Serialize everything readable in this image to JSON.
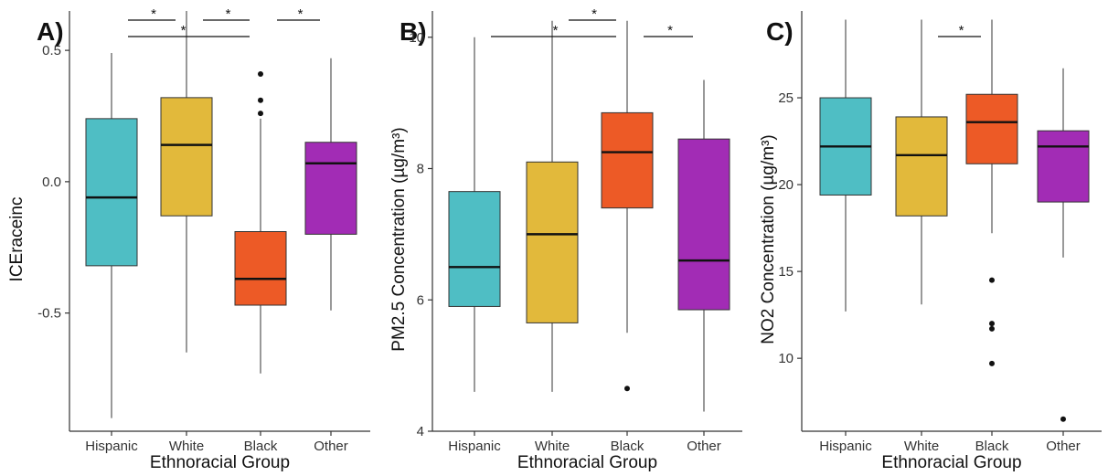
{
  "colors": {
    "Hispanic": "#4FBEC4",
    "White": "#E2B93B",
    "Black": "#ED5A26",
    "Other": "#A22CB5"
  },
  "chart_data": [
    {
      "type": "boxplot",
      "panel": "A)",
      "xlabel": "Ethnoracial Group",
      "ylabel": "ICEraceinc",
      "categories": [
        "Hispanic",
        "White",
        "Black",
        "Other"
      ],
      "ylim": [
        -0.95,
        0.65
      ],
      "yticks": [
        0.5,
        0.0,
        -0.5
      ],
      "ytick_labels": [
        "0.5",
        "0.0",
        "-0.5"
      ],
      "grid": false,
      "boxes": [
        {
          "group": "Hispanic",
          "whisker_low": -0.9,
          "q1": -0.32,
          "median": -0.06,
          "q3": 0.24,
          "whisker_high": 0.49,
          "outliers": []
        },
        {
          "group": "White",
          "whisker_low": -0.65,
          "q1": -0.13,
          "median": 0.14,
          "q3": 0.32,
          "whisker_high": 0.65,
          "outliers": []
        },
        {
          "group": "Black",
          "whisker_low": -0.73,
          "q1": -0.47,
          "median": -0.37,
          "q3": -0.19,
          "whisker_high": 0.24,
          "outliers": [
            0.26,
            0.31,
            0.41
          ]
        },
        {
          "group": "Other",
          "whisker_low": -0.49,
          "q1": -0.2,
          "median": 0.07,
          "q3": 0.15,
          "whisker_high": 0.47,
          "outliers": []
        }
      ],
      "significance": [
        {
          "from": "Hispanic",
          "to": "White",
          "label": "*",
          "level": 2
        },
        {
          "from": "White",
          "to": "Black",
          "label": "*",
          "level": 2
        },
        {
          "from": "Black",
          "to": "Other",
          "label": "*",
          "level": 2
        },
        {
          "from": "Hispanic",
          "to": "Black",
          "label": "*",
          "level": 1
        }
      ]
    },
    {
      "type": "boxplot",
      "panel": "B)",
      "xlabel": "Ethnoracial Group",
      "ylabel": "PM2.5 Concentration (µg/m³)",
      "categories": [
        "Hispanic",
        "White",
        "Black",
        "Other"
      ],
      "ylim": [
        4.0,
        10.4
      ],
      "yticks": [
        10,
        8,
        6,
        4
      ],
      "ytick_labels": [
        "10",
        "8",
        "6",
        "4"
      ],
      "grid": false,
      "boxes": [
        {
          "group": "Hispanic",
          "whisker_low": 4.6,
          "q1": 5.9,
          "median": 6.5,
          "q3": 7.65,
          "whisker_high": 10.0,
          "outliers": []
        },
        {
          "group": "White",
          "whisker_low": 4.6,
          "q1": 5.65,
          "median": 7.0,
          "q3": 8.1,
          "whisker_high": 10.25,
          "outliers": []
        },
        {
          "group": "Black",
          "whisker_low": 5.5,
          "q1": 7.4,
          "median": 8.25,
          "q3": 8.85,
          "whisker_high": 10.25,
          "outliers": [
            4.65
          ]
        },
        {
          "group": "Other",
          "whisker_low": 4.3,
          "q1": 5.85,
          "median": 6.6,
          "q3": 8.45,
          "whisker_high": 9.35,
          "outliers": []
        }
      ],
      "significance": [
        {
          "from": "White",
          "to": "Black",
          "label": "*",
          "level": 2
        },
        {
          "from": "Hispanic",
          "to": "Black",
          "label": "*",
          "level": 1
        },
        {
          "from": "Black",
          "to": "Other",
          "label": "*",
          "level": 1
        }
      ]
    },
    {
      "type": "boxplot",
      "panel": "C)",
      "xlabel": "Ethnoracial Group",
      "ylabel": "NO2 Concentration (µg/m³)",
      "categories": [
        "Hispanic",
        "White",
        "Black",
        "Other"
      ],
      "ylim": [
        5.8,
        30.0
      ],
      "yticks": [
        25,
        20,
        15,
        10
      ],
      "ytick_labels": [
        "25",
        "20",
        "15",
        "10"
      ],
      "grid": false,
      "boxes": [
        {
          "group": "Hispanic",
          "whisker_low": 12.7,
          "q1": 19.4,
          "median": 22.2,
          "q3": 25.0,
          "whisker_high": 29.5,
          "outliers": []
        },
        {
          "group": "White",
          "whisker_low": 13.1,
          "q1": 18.2,
          "median": 21.7,
          "q3": 23.9,
          "whisker_high": 29.5,
          "outliers": []
        },
        {
          "group": "Black",
          "whisker_low": 17.2,
          "q1": 21.2,
          "median": 23.6,
          "q3": 25.2,
          "whisker_high": 29.5,
          "outliers": [
            14.5,
            12.0,
            11.7,
            9.7
          ]
        },
        {
          "group": "Other",
          "whisker_low": 15.8,
          "q1": 19.0,
          "median": 22.2,
          "q3": 23.1,
          "whisker_high": 26.7,
          "outliers": [
            6.5
          ]
        }
      ],
      "significance": [
        {
          "from": "White",
          "to": "Black",
          "label": "*",
          "level": 1
        }
      ]
    }
  ]
}
